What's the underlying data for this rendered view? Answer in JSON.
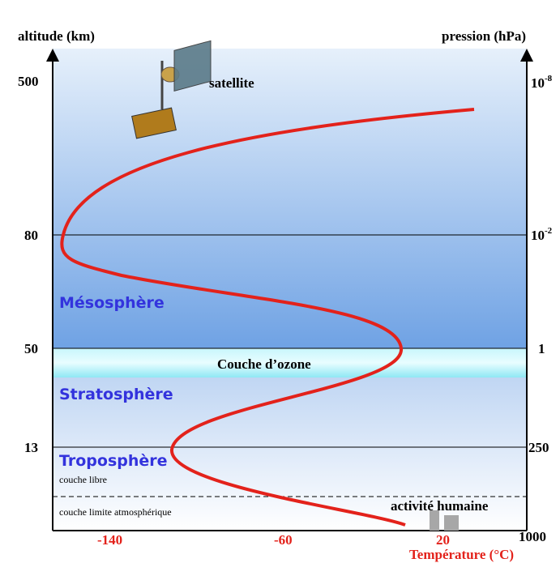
{
  "axes": {
    "left_title": "altitude (km)",
    "right_title": "pression (hPa)",
    "bottom_title": "Température (°C)",
    "altitude_ticks": [
      "500",
      "80",
      "50",
      "13"
    ],
    "pressure_ticks": [
      {
        "base": "10",
        "exp": "-8"
      },
      {
        "base": "10",
        "exp": "-2"
      },
      {
        "base": "1"
      },
      {
        "base": "250"
      },
      {
        "base": "1000"
      }
    ],
    "temperature_ticks": [
      "-140",
      "-60",
      "20"
    ]
  },
  "labels": {
    "satellite": "satellite",
    "mesosphere": "Mésosphère",
    "ozone": "Couche d’ozone",
    "stratosphere": "Stratosphère",
    "troposphere": "Troposphère",
    "free_layer": "couche libre",
    "boundary_layer": "couche limite atmosphérique",
    "human_activity": "activité humaine"
  }
}
